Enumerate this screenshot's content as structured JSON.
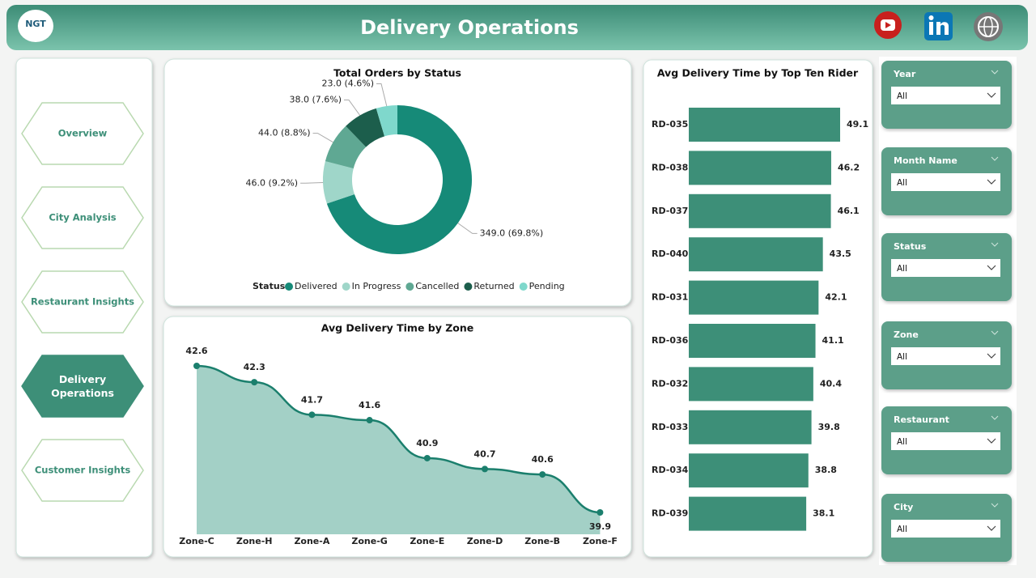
{
  "header": {
    "logo": "NGT",
    "title": "Delivery Operations"
  },
  "nav": [
    "Overview",
    "City Analysis",
    "Restaurant Insights",
    "Delivery Operations",
    "Customer Insights"
  ],
  "filters": [
    {
      "label": "Year",
      "value": "All"
    },
    {
      "label": "Month Name",
      "value": "All"
    },
    {
      "label": "Status",
      "value": "All"
    },
    {
      "label": "Zone",
      "value": "All"
    },
    {
      "label": "Restaurant",
      "value": "All"
    },
    {
      "label": "City",
      "value": "All"
    }
  ],
  "chart_data": [
    {
      "type": "donut",
      "title": "Total Orders by Status",
      "legend_title": "Status",
      "categories": [
        "Delivered",
        "In Progress",
        "Cancelled",
        "Returned",
        "Pending"
      ],
      "values": [
        349.0,
        46.0,
        44.0,
        38.0,
        23.0
      ],
      "value_labels": [
        "349.0 (69.8%)",
        "46.0 (9.2%)",
        "44.0 (8.8%)",
        "38.0 (7.6%)",
        "23.0 (4.6%)"
      ],
      "colors": [
        "#168a78",
        "#9fd6c9",
        "#5fa893",
        "#1c5e4c",
        "#7fd8cc"
      ]
    },
    {
      "type": "area",
      "title": "Avg Delivery Time by Zone",
      "color": "#1b7f6d",
      "fill": "#a3d0c6",
      "categories": [
        "Zone-C",
        "Zone-H",
        "Zone-A",
        "Zone-G",
        "Zone-E",
        "Zone-D",
        "Zone-B",
        "Zone-F"
      ],
      "values": [
        42.6,
        42.3,
        41.7,
        41.6,
        40.9,
        40.7,
        40.6,
        39.9
      ]
    },
    {
      "type": "hbar",
      "title": "Avg Delivery Time by Top Ten Rider",
      "color": "#3d8f78",
      "categories": [
        "RD-035",
        "RD-038",
        "RD-037",
        "RD-040",
        "RD-031",
        "RD-036",
        "RD-032",
        "RD-033",
        "RD-034",
        "RD-039"
      ],
      "values": [
        49.1,
        46.2,
        46.1,
        43.5,
        42.1,
        41.1,
        40.4,
        39.8,
        38.8,
        38.1
      ]
    }
  ]
}
